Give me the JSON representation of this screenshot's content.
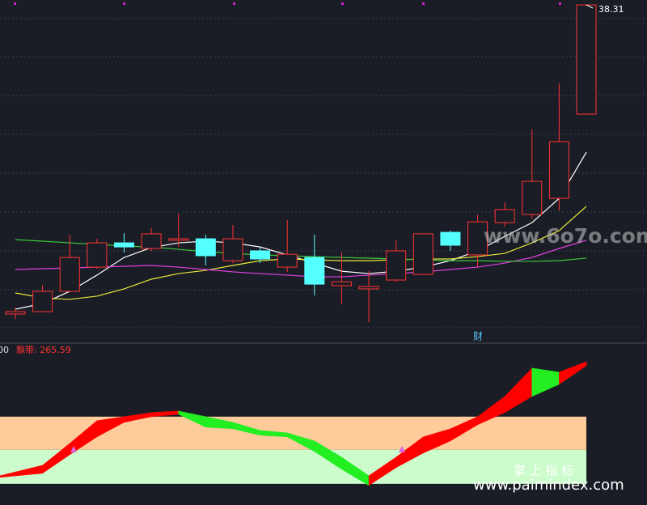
{
  "chart_data": [
    {
      "type": "candlestick",
      "ylim": [
        19.3,
        38.6
      ],
      "up_color": "#ff3232",
      "down_color": "#54ffff",
      "open": [
        20.11,
        20.25,
        21.44,
        22.87,
        24.3,
        23.97,
        24.45,
        24.54,
        23.25,
        23.83,
        22.87,
        23.44,
        21.78,
        21.59,
        22.11,
        22.44,
        24.92,
        23.59,
        25.49,
        25.97,
        26.92,
        31.88
      ],
      "high": [
        20.49,
        21.82,
        24.78,
        24.54,
        24.87,
        25.16,
        26.02,
        24.78,
        25.35,
        24.06,
        25.64,
        24.78,
        23.73,
        22.63,
        24.45,
        24.83,
        25.02,
        25.97,
        26.68,
        30.97,
        33.69,
        38.31
      ],
      "low": [
        19.82,
        20.25,
        21.44,
        22.78,
        23.73,
        23.83,
        24.06,
        22.97,
        23.11,
        23.11,
        22.59,
        21.2,
        20.68,
        19.63,
        22.01,
        22.44,
        23.83,
        22.87,
        25.26,
        25.73,
        26.21,
        31.88
      ],
      "close": [
        20.25,
        21.44,
        23.44,
        24.3,
        24.06,
        24.83,
        24.54,
        23.54,
        24.54,
        23.35,
        23.63,
        21.87,
        22.01,
        21.73,
        23.83,
        24.83,
        24.16,
        25.54,
        26.26,
        27.92,
        30.26,
        38.31
      ],
      "series": [
        {
          "color": "#ffffff",
          "values": [
            20.39,
            20.73,
            21.44,
            22.4,
            23.44,
            24.02,
            24.3,
            24.4,
            24.3,
            24.06,
            23.59,
            23.11,
            22.63,
            22.49,
            22.63,
            22.87,
            23.25,
            23.83,
            24.68,
            25.49,
            26.92,
            29.64
          ]
        },
        {
          "color": "#e8e83a",
          "values": [
            21.35,
            21.06,
            20.97,
            21.16,
            21.59,
            22.16,
            22.49,
            22.68,
            22.97,
            23.25,
            23.35,
            23.3,
            23.25,
            23.25,
            23.3,
            23.35,
            23.35,
            23.49,
            23.68,
            24.3,
            25.02,
            26.45
          ]
        },
        {
          "color": "#e040e0",
          "values": [
            22.73,
            22.78,
            22.82,
            22.87,
            22.92,
            22.97,
            22.87,
            22.73,
            22.59,
            22.49,
            22.4,
            22.3,
            22.3,
            22.4,
            22.49,
            22.59,
            22.73,
            22.87,
            23.11,
            23.44,
            23.97,
            24.45
          ]
        },
        {
          "color": "#3ac83a",
          "values": [
            24.49,
            24.4,
            24.3,
            24.21,
            24.11,
            24.06,
            23.92,
            23.78,
            23.68,
            23.59,
            23.54,
            23.49,
            23.44,
            23.4,
            23.35,
            23.3,
            23.25,
            23.25,
            23.21,
            23.21,
            23.25,
            23.4
          ]
        }
      ]
    },
    {
      "type": "ribbon",
      "label": "飘带:",
      "ylim": [
        -46,
        304
      ],
      "up_color": "#ff0000",
      "down_color": "#22ee22",
      "zones": [
        {
          "from": 74,
          "to": 146,
          "color": "#fecb9a"
        },
        {
          "from": 0,
          "to": 74,
          "color": "#ccfccc"
        }
      ],
      "upper": [
        17.6,
        40.4,
        87.9,
        137.2,
        146.0,
        154.8,
        158.3,
        146.0,
        133.7,
        116.1,
        110.8,
        93.2,
        58.0,
        17.6,
        58.0,
        102.0,
        119.6,
        146.0,
        189.9,
        251.5,
        242.7,
        265.59
      ],
      "lower": [
        14.1,
        22.9,
        63.3,
        102.0,
        133.7,
        146.0,
        151.2,
        123.1,
        119.6,
        105.5,
        102.0,
        70.3,
        31.7,
        -3.5,
        35.2,
        66.8,
        93.2,
        128.4,
        154.8,
        189.9,
        216.3,
        256.8
      ]
    }
  ],
  "overlay": {
    "truncated": "00",
    "event": "财",
    "watermark": "www.6o7o.com",
    "brand": "掌 上 指 标",
    "site": "www.palmindex.com"
  }
}
